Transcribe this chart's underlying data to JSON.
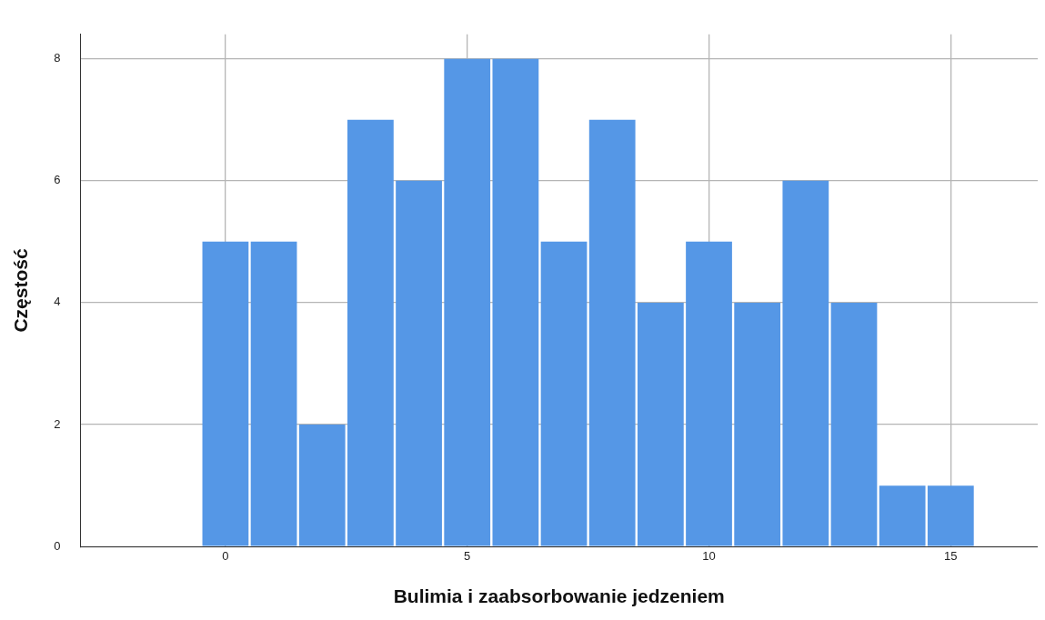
{
  "chart_data": {
    "type": "histogram",
    "xlabel": "Bulimia i zaabsorbowanie jedzeniem",
    "ylabel": "Częstość",
    "bins": [
      -0.5,
      0.5,
      1.5,
      2.5,
      3.5,
      4.5,
      5.5,
      6.5,
      7.5,
      8.5,
      9.5,
      10.5,
      11.5,
      12.5,
      13.5,
      14.5,
      15.5
    ],
    "values": [
      5,
      5,
      2,
      7,
      6,
      8,
      8,
      5,
      7,
      4,
      5,
      4,
      6,
      4,
      1,
      1
    ],
    "color": "#5597e6",
    "xlim": [
      -3,
      16.8
    ],
    "xticks": [
      0,
      5,
      10,
      15
    ],
    "ylim": [
      0,
      8.4
    ],
    "yticks": [
      0,
      2,
      4,
      6,
      8
    ],
    "grid": true,
    "legend": false
  }
}
